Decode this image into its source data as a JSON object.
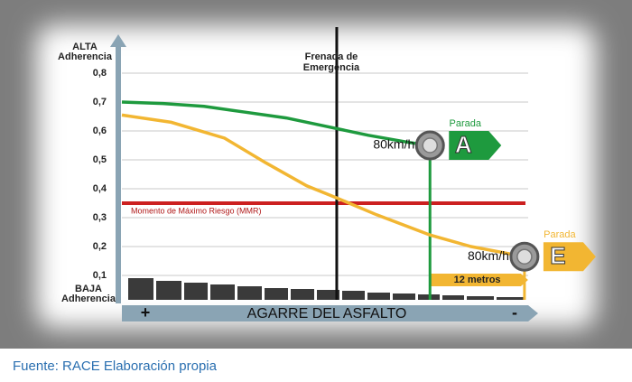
{
  "chart_data": {
    "type": "line",
    "y_top_label": [
      "ALTA",
      "Adherencia"
    ],
    "y_bottom_label": [
      "BAJA",
      "Adherencia"
    ],
    "x_label": "AGARRE DEL ASFALTO",
    "x_start": "+",
    "x_end": "-",
    "xlim": [
      0,
      100
    ],
    "ylim": [
      0,
      0.9
    ],
    "yticks": [
      {
        "value": 0.1,
        "label": "0,1"
      },
      {
        "value": 0.2,
        "label": "0,2"
      },
      {
        "value": 0.3,
        "label": "0,3"
      },
      {
        "value": 0.4,
        "label": "0,4"
      },
      {
        "value": 0.5,
        "label": "0,5"
      },
      {
        "value": 0.6,
        "label": "0,6"
      },
      {
        "value": 0.7,
        "label": "0,7"
      },
      {
        "value": 0.8,
        "label": "0,8"
      }
    ],
    "grid": true,
    "series": [
      {
        "color": "#1e9a3e",
        "x": [
          0,
          10,
          20,
          30,
          40,
          50,
          60,
          70,
          75
        ],
        "values": [
          0.7,
          0.695,
          0.685,
          0.665,
          0.645,
          0.615,
          0.585,
          0.56,
          0.55
        ]
      },
      {
        "color": "#f2b632",
        "x": [
          0,
          12,
          25,
          35,
          45,
          52,
          62,
          75,
          85,
          98
        ],
        "values": [
          0.655,
          0.63,
          0.575,
          0.49,
          0.41,
          0.37,
          0.31,
          0.24,
          0.2,
          0.165
        ]
      }
    ],
    "emergency": {
      "label": [
        "Frenada de",
        "Emergencia"
      ],
      "x": 52.3
    },
    "mmr": {
      "label": "Momento de Máximo Riesgo (MMR)",
      "y": 0.35
    },
    "stops": [
      {
        "speed": "80km/h",
        "label": "Parada",
        "letter": "A",
        "x": 75
      },
      {
        "speed": "80km/h",
        "label": "Parada",
        "letter": "E",
        "x": 98
      }
    ],
    "distance": "12 metros"
  },
  "source": "Fuente: RACE Elaboración propia"
}
